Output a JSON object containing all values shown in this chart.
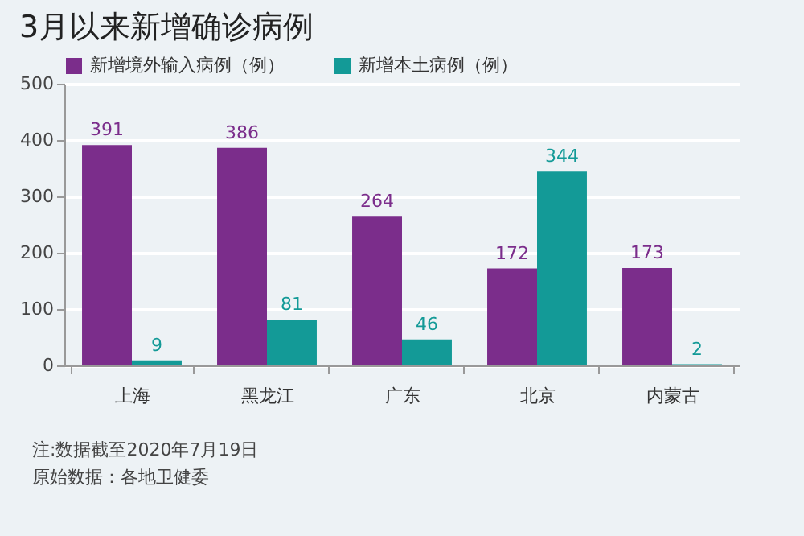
{
  "chart_data": {
    "type": "bar",
    "title": "3月以来新增确诊病例",
    "categories": [
      "上海",
      "黑龙江",
      "广东",
      "北京",
      "内蒙古"
    ],
    "series": [
      {
        "name": "新增境外输入病例（例）",
        "color": "#7b2d8b",
        "values": [
          391,
          386,
          264,
          172,
          173
        ]
      },
      {
        "name": "新增本土病例（例）",
        "color": "#139a97",
        "values": [
          9,
          81,
          46,
          344,
          2
        ]
      }
    ],
    "ylim": [
      0,
      500
    ],
    "yticks": [
      0,
      100,
      200,
      300,
      400,
      500
    ],
    "grid": "y",
    "legend": "top left",
    "data_labels": true,
    "annotations": [
      "注:数据截至2020年7月19日",
      "原始数据：各地卫健委"
    ]
  }
}
